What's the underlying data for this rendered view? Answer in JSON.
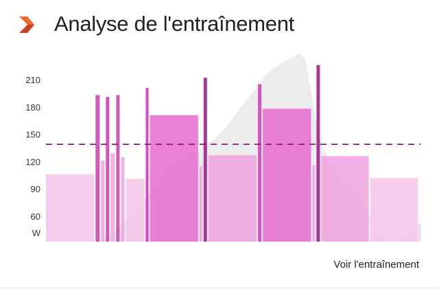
{
  "header": {
    "title": "Analyse de l'entraînement",
    "logo_color": "#e5582a"
  },
  "footer": {
    "link_label": "Voir l'entraînement"
  },
  "chart_data": {
    "type": "bar",
    "title": "",
    "ylabel": "W",
    "yticks": [
      60,
      90,
      120,
      150,
      180,
      210
    ],
    "ylim": [
      32,
      240
    ],
    "threshold": {
      "value": 139,
      "style": "dashed",
      "color": "#8a0a76"
    },
    "grid": false,
    "bars": [
      {
        "duration": 70,
        "value": 106,
        "color": "#f5c6ea"
      },
      {
        "duration": 6,
        "value": 193,
        "color": "#c844ad"
      },
      {
        "duration": 5,
        "value": 121,
        "color": "#f0a6e1"
      },
      {
        "duration": 5,
        "value": 191,
        "color": "#c844ad"
      },
      {
        "duration": 6,
        "value": 129,
        "color": "#f0a6e1"
      },
      {
        "duration": 5,
        "value": 193,
        "color": "#c844ad"
      },
      {
        "duration": 5,
        "value": 125,
        "color": "#f0a6e1"
      },
      {
        "duration": 27,
        "value": 101,
        "color": "#f5c6ea"
      },
      {
        "duration": 4,
        "value": 201,
        "color": "#d22fb8"
      },
      {
        "duration": 70,
        "value": 171,
        "color": "#e870d2"
      },
      {
        "duration": 4,
        "value": 115,
        "color": "#f0a6e1"
      },
      {
        "duration": 5,
        "value": 212,
        "color": "#a01a8e"
      },
      {
        "duration": 70,
        "value": 127,
        "color": "#f0a6e1"
      },
      {
        "duration": 5,
        "value": 205,
        "color": "#c844ad"
      },
      {
        "duration": 70,
        "value": 178,
        "color": "#e870d2"
      },
      {
        "duration": 4,
        "value": 116,
        "color": "#f0a6e1"
      },
      {
        "duration": 5,
        "value": 226,
        "color": "#a01a8e"
      },
      {
        "duration": 69,
        "value": 126,
        "color": "#f0a6e1"
      },
      {
        "duration": 69,
        "value": 102,
        "color": "#f5c6ea"
      },
      {
        "duration": 2,
        "value": 51,
        "color": "#f5c6ea"
      }
    ],
    "elevation_profile": [
      0,
      0,
      0,
      0,
      0,
      0,
      0,
      0,
      0,
      1,
      2,
      4,
      6,
      9,
      12,
      15,
      18,
      22,
      26,
      30,
      34,
      37,
      40,
      42,
      44,
      46,
      48,
      50,
      52,
      54,
      57,
      60,
      64,
      68,
      72,
      76,
      80,
      84,
      88,
      91,
      93,
      95,
      97,
      98,
      100,
      97,
      80,
      62,
      50,
      45,
      40,
      36,
      33,
      30,
      27,
      22,
      15,
      9,
      5,
      3,
      2,
      2,
      3,
      5,
      8,
      10
    ]
  }
}
